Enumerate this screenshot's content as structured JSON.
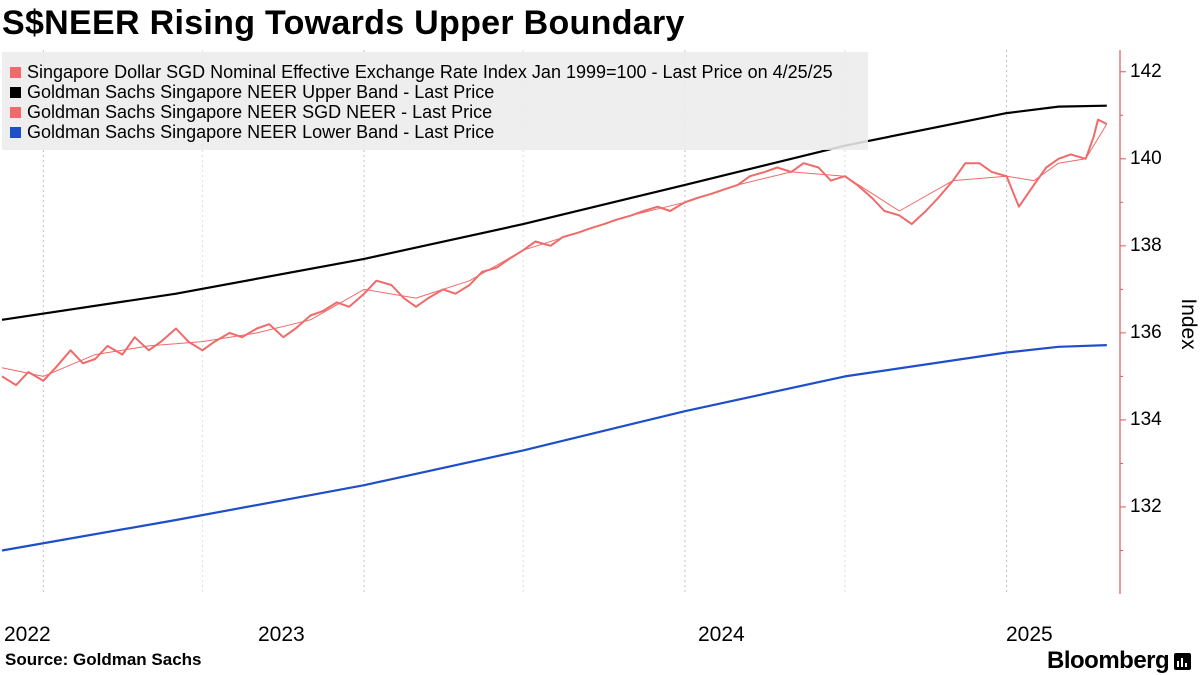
{
  "title": "S$NEER Rising Towards Upper Boundary",
  "source": "Source: Goldman Sachs",
  "brand": "Bloomberg",
  "colors": {
    "neer_index": "#f06a6a",
    "upper_band": "#000000",
    "sgd_neer": "#f06a6a",
    "lower_band": "#1e4fc9",
    "axis": "#e0585c",
    "grid": "#c0c0c0"
  },
  "legend": [
    "Singapore Dollar SGD Nominal Effective Exchange Rate Index Jan 1999=100 - Last Price on 4/25/25",
    "Goldman Sachs Singapore NEER Upper Band - Last Price",
    "Goldman Sachs Singapore NEER SGD NEER - Last Price",
    "Goldman Sachs Singapore NEER Lower Band - Last Price"
  ],
  "chart_data": {
    "type": "line",
    "ylabel": "Index",
    "xlabel": "",
    "ylim": [
      130,
      142.5
    ],
    "yticks": [
      132,
      134,
      136,
      138,
      140,
      142
    ],
    "yaxis_position": "right",
    "xlim": [
      "2021-11-15",
      "2025-05-10"
    ],
    "xtick_labels": [
      "2022",
      "2023",
      "2024",
      "2025"
    ],
    "grid": "vertical dashed at year boundaries",
    "legend_position": "top-left",
    "series": [
      {
        "name": "Singapore Dollar SGD Nominal Effective Exchange Rate Index Jan 1999=100 - Last Price on 4/25/25",
        "style": "thick",
        "points": [
          [
            "2021-11-15",
            135.0
          ],
          [
            "2021-12-01",
            134.8
          ],
          [
            "2021-12-15",
            135.1
          ],
          [
            "2022-01-01",
            134.9
          ],
          [
            "2022-01-15",
            135.2
          ],
          [
            "2022-02-01",
            135.6
          ],
          [
            "2022-02-15",
            135.3
          ],
          [
            "2022-03-01",
            135.4
          ],
          [
            "2022-03-15",
            135.7
          ],
          [
            "2022-04-01",
            135.5
          ],
          [
            "2022-04-15",
            135.9
          ],
          [
            "2022-05-01",
            135.6
          ],
          [
            "2022-05-15",
            135.8
          ],
          [
            "2022-06-01",
            136.1
          ],
          [
            "2022-06-15",
            135.8
          ],
          [
            "2022-07-01",
            135.6
          ],
          [
            "2022-07-15",
            135.8
          ],
          [
            "2022-08-01",
            136.0
          ],
          [
            "2022-08-15",
            135.9
          ],
          [
            "2022-09-01",
            136.1
          ],
          [
            "2022-09-15",
            136.2
          ],
          [
            "2022-10-01",
            135.9
          ],
          [
            "2022-10-15",
            136.1
          ],
          [
            "2022-11-01",
            136.4
          ],
          [
            "2022-11-15",
            136.5
          ],
          [
            "2022-12-01",
            136.7
          ],
          [
            "2022-12-15",
            136.6
          ],
          [
            "2023-01-01",
            136.9
          ],
          [
            "2023-01-15",
            137.2
          ],
          [
            "2023-02-01",
            137.1
          ],
          [
            "2023-02-15",
            136.8
          ],
          [
            "2023-03-01",
            136.6
          ],
          [
            "2023-03-15",
            136.8
          ],
          [
            "2023-04-01",
            137.0
          ],
          [
            "2023-04-15",
            136.9
          ],
          [
            "2023-05-01",
            137.1
          ],
          [
            "2023-05-15",
            137.4
          ],
          [
            "2023-06-01",
            137.5
          ],
          [
            "2023-06-15",
            137.7
          ],
          [
            "2023-07-01",
            137.9
          ],
          [
            "2023-07-15",
            138.1
          ],
          [
            "2023-08-01",
            138.0
          ],
          [
            "2023-08-15",
            138.2
          ],
          [
            "2023-09-01",
            138.3
          ],
          [
            "2023-09-15",
            138.4
          ],
          [
            "2023-10-01",
            138.5
          ],
          [
            "2023-10-15",
            138.6
          ],
          [
            "2023-11-01",
            138.7
          ],
          [
            "2023-11-15",
            138.8
          ],
          [
            "2023-12-01",
            138.9
          ],
          [
            "2023-12-15",
            138.8
          ],
          [
            "2024-01-01",
            139.0
          ],
          [
            "2024-01-15",
            139.1
          ],
          [
            "2024-02-01",
            139.2
          ],
          [
            "2024-02-15",
            139.3
          ],
          [
            "2024-03-01",
            139.4
          ],
          [
            "2024-03-15",
            139.6
          ],
          [
            "2024-04-01",
            139.7
          ],
          [
            "2024-04-15",
            139.8
          ],
          [
            "2024-05-01",
            139.7
          ],
          [
            "2024-05-15",
            139.9
          ],
          [
            "2024-06-01",
            139.8
          ],
          [
            "2024-06-15",
            139.5
          ],
          [
            "2024-07-01",
            139.6
          ],
          [
            "2024-07-15",
            139.4
          ],
          [
            "2024-08-01",
            139.1
          ],
          [
            "2024-08-15",
            138.8
          ],
          [
            "2024-09-01",
            138.7
          ],
          [
            "2024-09-15",
            138.5
          ],
          [
            "2024-10-01",
            138.8
          ],
          [
            "2024-10-15",
            139.1
          ],
          [
            "2024-11-01",
            139.5
          ],
          [
            "2024-11-15",
            139.9
          ],
          [
            "2024-12-01",
            139.9
          ],
          [
            "2024-12-15",
            139.7
          ],
          [
            "2025-01-01",
            139.6
          ],
          [
            "2025-01-15",
            138.9
          ],
          [
            "2025-02-01",
            139.4
          ],
          [
            "2025-02-15",
            139.8
          ],
          [
            "2025-03-01",
            140.0
          ],
          [
            "2025-03-15",
            140.1
          ],
          [
            "2025-04-01",
            140.0
          ],
          [
            "2025-04-10",
            140.5
          ],
          [
            "2025-04-15",
            140.9
          ],
          [
            "2025-04-25",
            140.8
          ]
        ]
      },
      {
        "name": "Goldman Sachs Singapore NEER Upper Band - Last Price",
        "points": [
          [
            "2021-11-15",
            136.3
          ],
          [
            "2022-06-01",
            136.9
          ],
          [
            "2023-01-01",
            137.7
          ],
          [
            "2023-07-01",
            138.5
          ],
          [
            "2024-01-01",
            139.4
          ],
          [
            "2024-07-01",
            140.3
          ],
          [
            "2025-01-01",
            141.05
          ],
          [
            "2025-03-01",
            141.2
          ],
          [
            "2025-04-25",
            141.22
          ]
        ]
      },
      {
        "name": "Goldman Sachs Singapore NEER SGD NEER - Last Price",
        "style": "thin",
        "points": [
          [
            "2021-11-15",
            135.2
          ],
          [
            "2022-01-01",
            135.0
          ],
          [
            "2022-03-01",
            135.5
          ],
          [
            "2022-05-01",
            135.7
          ],
          [
            "2022-07-01",
            135.8
          ],
          [
            "2022-09-01",
            136.0
          ],
          [
            "2022-11-01",
            136.3
          ],
          [
            "2023-01-01",
            137.0
          ],
          [
            "2023-03-01",
            136.8
          ],
          [
            "2023-05-01",
            137.2
          ],
          [
            "2023-07-01",
            137.9
          ],
          [
            "2023-09-01",
            138.3
          ],
          [
            "2023-11-01",
            138.7
          ],
          [
            "2024-01-01",
            139.0
          ],
          [
            "2024-03-01",
            139.4
          ],
          [
            "2024-05-01",
            139.7
          ],
          [
            "2024-07-01",
            139.6
          ],
          [
            "2024-09-01",
            138.8
          ],
          [
            "2024-11-01",
            139.5
          ],
          [
            "2025-01-01",
            139.6
          ],
          [
            "2025-02-01",
            139.5
          ],
          [
            "2025-03-01",
            139.9
          ],
          [
            "2025-04-01",
            140.0
          ],
          [
            "2025-04-25",
            140.8
          ]
        ]
      },
      {
        "name": "Goldman Sachs Singapore NEER Lower Band - Last Price",
        "points": [
          [
            "2021-11-15",
            131.0
          ],
          [
            "2022-06-01",
            131.7
          ],
          [
            "2023-01-01",
            132.5
          ],
          [
            "2023-07-01",
            133.3
          ],
          [
            "2024-01-01",
            134.2
          ],
          [
            "2024-07-01",
            135.0
          ],
          [
            "2025-01-01",
            135.55
          ],
          [
            "2025-03-01",
            135.68
          ],
          [
            "2025-04-25",
            135.72
          ]
        ]
      }
    ]
  }
}
